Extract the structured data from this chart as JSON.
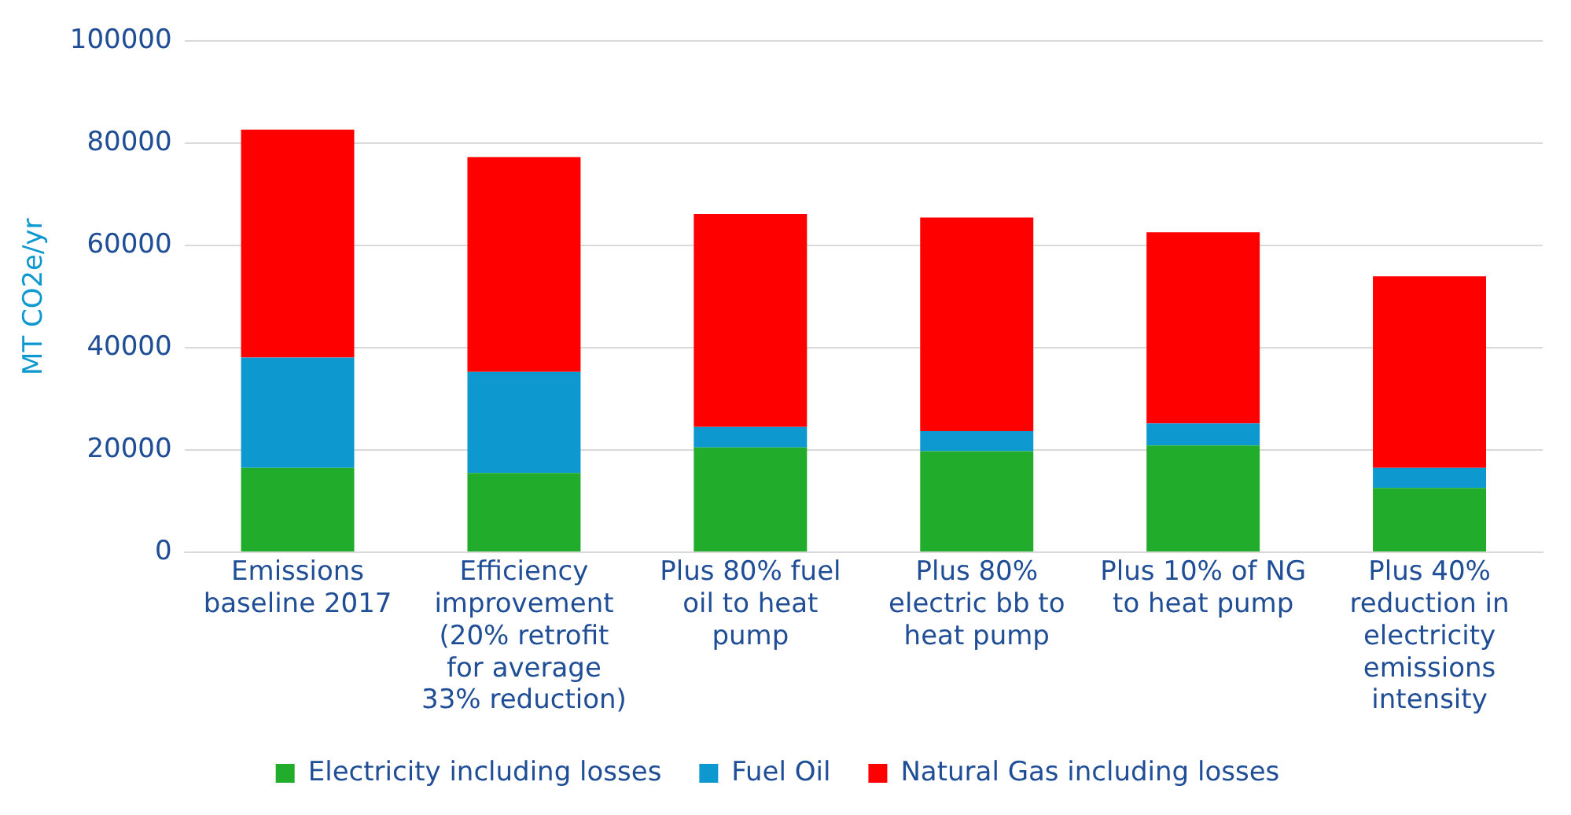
{
  "chart_data": {
    "type": "bar",
    "stacked": true,
    "ylabel": "MT CO2e/yr",
    "categories": [
      "Emissions baseline 2017",
      "Efficiency improvement (20% retrofit for average 33% reduction)",
      "Plus 80% fuel oil to heat pump",
      "Plus 80% electric bb to heat pump",
      "Plus 10% of NG to heat pump",
      "Plus 40% reduction in electricity emissions intensity"
    ],
    "series": [
      {
        "name": "Electricity including losses",
        "color": "#22ac2c",
        "values": [
          16500,
          15500,
          20500,
          19800,
          20900,
          12600
        ]
      },
      {
        "name": "Fuel Oil",
        "color": "#0e98d0",
        "values": [
          21600,
          19800,
          4000,
          3900,
          4300,
          3900
        ]
      },
      {
        "name": "Natural Gas including losses",
        "color": "#ff0000",
        "values": [
          44600,
          42000,
          41700,
          41800,
          37400,
          37500
        ]
      }
    ],
    "ylim": [
      0,
      100000
    ],
    "yticks": [
      0,
      20000,
      40000,
      60000,
      80000,
      100000
    ],
    "grid": "y",
    "legend": "bottom"
  }
}
